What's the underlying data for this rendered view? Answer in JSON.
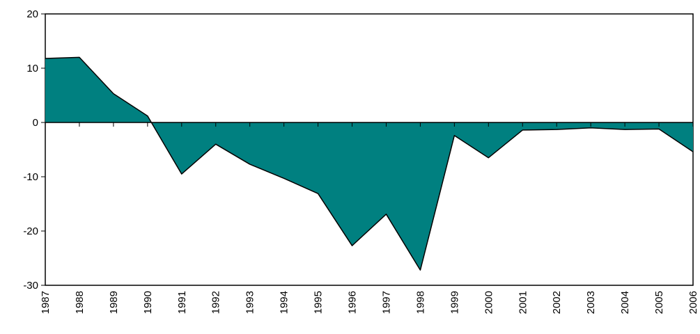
{
  "chart_data": {
    "type": "area",
    "categories": [
      "1987",
      "1988",
      "1989",
      "1990",
      "1991",
      "1992",
      "1993",
      "1994",
      "1995",
      "1996",
      "1997",
      "1998",
      "1999",
      "2000",
      "2001",
      "2002",
      "2003",
      "2004",
      "2005",
      "2006"
    ],
    "values": [
      11.8,
      12.0,
      5.3,
      1.2,
      -9.5,
      -4.0,
      -7.7,
      -10.3,
      -13.1,
      -22.7,
      -16.9,
      -27.2,
      -2.4,
      -6.5,
      -1.4,
      -1.3,
      -1.0,
      -1.3,
      -1.2,
      -5.4
    ],
    "color": "#008080",
    "ylim": [
      -30,
      20
    ],
    "yticks": [
      -30,
      -20,
      -10,
      0,
      10,
      20
    ]
  }
}
